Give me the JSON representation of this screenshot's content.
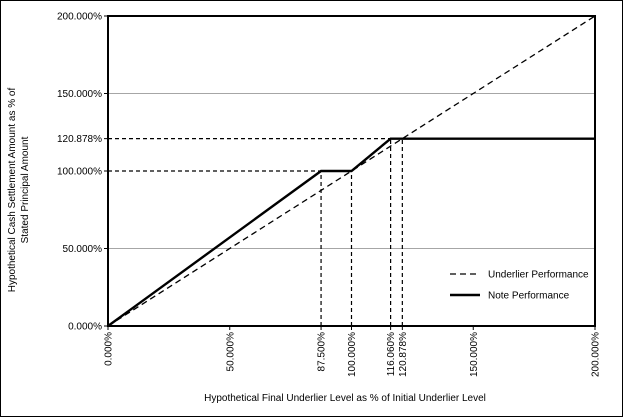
{
  "chart_data": {
    "type": "line",
    "x_label": "Hypothetical Final Underlier Level as % of Initial Underlier Level",
    "y_label": [
      "Hypothetical Cash Settlement Amount as % of",
      "Stated Principal Amount"
    ],
    "xlim": [
      0,
      200
    ],
    "ylim": [
      0,
      200
    ],
    "xticks": [
      {
        "value": 0,
        "label": "0.000%"
      },
      {
        "value": 50,
        "label": "50.000%"
      },
      {
        "value": 87.5,
        "label": "87.500%"
      },
      {
        "value": 100,
        "label": "100.000%"
      },
      {
        "value": 116.06,
        "label": "116.060%"
      },
      {
        "value": 120.878,
        "label": "120.878%"
      },
      {
        "value": 150,
        "label": "150.000%"
      },
      {
        "value": 200,
        "label": "200.000%"
      }
    ],
    "yticks": [
      {
        "value": 0,
        "label": "0.000%"
      },
      {
        "value": 50,
        "label": "50.000%"
      },
      {
        "value": 100,
        "label": "100.000%"
      },
      {
        "value": 120.878,
        "label": "120.878%"
      },
      {
        "value": 150,
        "label": "150.000%"
      },
      {
        "value": 200,
        "label": "200.000%"
      }
    ],
    "guides": [
      {
        "x": 87.5,
        "y": 100
      },
      {
        "x": 100,
        "y": 100
      },
      {
        "x": 116.06,
        "y": 120.878
      },
      {
        "x": 120.878,
        "y": 120.878
      }
    ],
    "grid_color": "#a6a6a6",
    "legend_position": "lower right",
    "series": [
      {
        "name": "Underlier Performance",
        "color": "#000000",
        "dashed": true,
        "x": [
          0,
          200
        ],
        "values": [
          0,
          200
        ]
      },
      {
        "name": "Note Performance",
        "color": "#000000",
        "dashed": false,
        "x": [
          0,
          87.5,
          100,
          116.06,
          200
        ],
        "values": [
          0,
          100,
          100,
          120.878,
          120.878
        ]
      }
    ]
  }
}
